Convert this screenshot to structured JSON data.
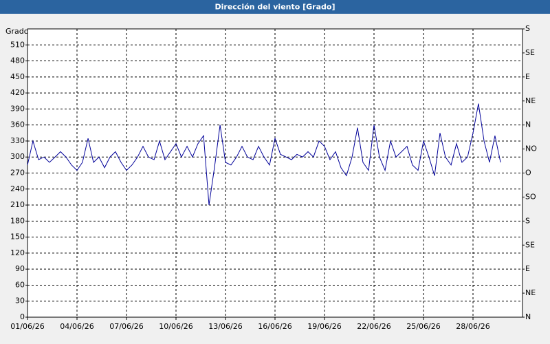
{
  "chart_data": {
    "type": "line",
    "title": "Dirección del viento [Grado]",
    "y_label": "Grado",
    "x": [
      1,
      1.33,
      1.67,
      2,
      2.33,
      2.67,
      3,
      3.33,
      3.67,
      4,
      4.33,
      4.67,
      5,
      5.33,
      5.67,
      6,
      6.33,
      6.67,
      7,
      7.33,
      7.67,
      8,
      8.33,
      8.67,
      9,
      9.33,
      9.67,
      10,
      10.33,
      10.67,
      11,
      11.33,
      11.67,
      12,
      12.33,
      12.67,
      13,
      13.33,
      13.67,
      14,
      14.33,
      14.67,
      15,
      15.33,
      15.67,
      16,
      16.33,
      16.67,
      17,
      17.33,
      17.67,
      18,
      18.33,
      18.67,
      19,
      19.33,
      19.67,
      20,
      20.33,
      20.67,
      21,
      21.33,
      21.67,
      22,
      22.33,
      22.67,
      23,
      23.33,
      23.67,
      24,
      24.33,
      24.67,
      25,
      25.33,
      25.67,
      26,
      26.33,
      26.67,
      27,
      27.33,
      27.67,
      28,
      28.33,
      28.67,
      29,
      29.33,
      29.67
    ],
    "series": [
      {
        "name": "Dirección del viento",
        "color": "#000099",
        "values": [
          285,
          330,
          295,
          300,
          290,
          300,
          310,
          300,
          285,
          275,
          290,
          335,
          290,
          300,
          280,
          300,
          310,
          290,
          275,
          285,
          300,
          320,
          300,
          295,
          330,
          295,
          310,
          325,
          300,
          320,
          300,
          325,
          340,
          210,
          280,
          360,
          290,
          285,
          300,
          320,
          300,
          295,
          320,
          300,
          285,
          335,
          305,
          300,
          295,
          305,
          300,
          310,
          300,
          330,
          320,
          295,
          310,
          280,
          265,
          300,
          355,
          290,
          275,
          360,
          300,
          275,
          330,
          300,
          310,
          320,
          285,
          275,
          330,
          300,
          265,
          345,
          300,
          285,
          325,
          290,
          300,
          345,
          400,
          330,
          290,
          340,
          290
        ]
      }
    ],
    "xlim": [
      1,
      31
    ],
    "xticks": [
      {
        "value": 1,
        "label": "01/06/26"
      },
      {
        "value": 4,
        "label": "04/06/26"
      },
      {
        "value": 7,
        "label": "07/06/26"
      },
      {
        "value": 10,
        "label": "10/06/26"
      },
      {
        "value": 13,
        "label": "13/06/26"
      },
      {
        "value": 16,
        "label": "16/06/26"
      },
      {
        "value": 19,
        "label": "19/06/26"
      },
      {
        "value": 22,
        "label": "22/06/26"
      },
      {
        "value": 25,
        "label": "25/06/26"
      },
      {
        "value": 28,
        "label": "28/06/26"
      }
    ],
    "ylim": [
      0,
      540
    ],
    "yticks": [
      0,
      30,
      60,
      90,
      120,
      150,
      180,
      210,
      240,
      270,
      300,
      330,
      360,
      390,
      420,
      450,
      480,
      510
    ],
    "y2lim": [
      0,
      540
    ],
    "y2ticks": [
      {
        "value": 0,
        "label": "N"
      },
      {
        "value": 45,
        "label": "NE"
      },
      {
        "value": 90,
        "label": "E"
      },
      {
        "value": 135,
        "label": "SE"
      },
      {
        "value": 180,
        "label": "S"
      },
      {
        "value": 225,
        "label": "SO"
      },
      {
        "value": 270,
        "label": "O"
      },
      {
        "value": 315,
        "label": "NO"
      },
      {
        "value": 360,
        "label": "N"
      },
      {
        "value": 405,
        "label": "NE"
      },
      {
        "value": 450,
        "label": "E"
      },
      {
        "value": 495,
        "label": "SE"
      },
      {
        "value": 540,
        "label": "S"
      }
    ],
    "grid": true
  }
}
